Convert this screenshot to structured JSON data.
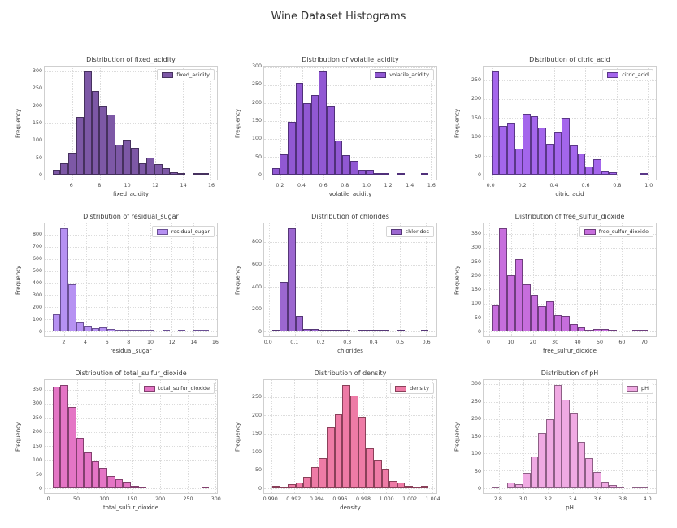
{
  "figure": {
    "title": "Wine Dataset Histograms"
  },
  "chart_data": [
    {
      "type": "bar",
      "title": "Distribution of fixed_acidity",
      "legend": "fixed_acidity",
      "xlabel": "fixed_acidity",
      "ylabel": "Frequency",
      "color": "#7d58a6",
      "edge_color": "#46315e",
      "bin_start": 4.6,
      "bin_end": 15.9,
      "counts": [
        13,
        33,
        63,
        167,
        300,
        243,
        199,
        174,
        86,
        102,
        78,
        33,
        49,
        29,
        18,
        7,
        4,
        0,
        2,
        4
      ],
      "x_ticks": [
        6,
        8,
        10,
        12,
        14,
        16
      ],
      "x_tick_labels": [
        "6",
        "8",
        "10",
        "12",
        "14",
        "16"
      ],
      "y_ticks": [
        0,
        50,
        100,
        150,
        200,
        250,
        300
      ],
      "grid": true,
      "legend_position": "upper right"
    },
    {
      "type": "bar",
      "title": "Distribution of volatile_acidity",
      "legend": "volatile_acidity",
      "xlabel": "volatile_acidity",
      "ylabel": "Frequency",
      "color": "#9158d3",
      "edge_color": "#50307a",
      "bin_start": 0.12,
      "bin_end": 1.58,
      "counts": [
        17,
        57,
        147,
        257,
        200,
        223,
        287,
        189,
        94,
        54,
        38,
        13,
        13,
        4,
        2,
        0,
        2,
        0,
        0,
        1
      ],
      "x_ticks": [
        0.2,
        0.4,
        0.6,
        0.8,
        1.0,
        1.2,
        1.4,
        1.6
      ],
      "x_tick_labels": [
        "0.2",
        "0.4",
        "0.6",
        "0.8",
        "1.0",
        "1.2",
        "1.4",
        "1.6"
      ],
      "y_ticks": [
        0,
        50,
        100,
        150,
        200,
        250,
        300
      ],
      "grid": true,
      "legend_position": "upper right"
    },
    {
      "type": "bar",
      "title": "Distribution of citric_acid",
      "legend": "citric_acid",
      "xlabel": "citric_acid",
      "ylabel": "Frequency",
      "color": "#a466ec",
      "edge_color": "#5a3788",
      "bin_start": 0.0,
      "bin_end": 1.0,
      "counts": [
        273,
        129,
        135,
        69,
        161,
        155,
        125,
        82,
        112,
        150,
        77,
        56,
        22,
        41,
        8,
        5,
        0,
        0,
        0,
        1
      ],
      "x_ticks": [
        0.0,
        0.2,
        0.4,
        0.6,
        0.8,
        1.0
      ],
      "x_tick_labels": [
        "0.0",
        "0.2",
        "0.4",
        "0.6",
        "0.8",
        "1.0"
      ],
      "y_ticks": [
        0,
        50,
        100,
        150,
        200,
        250
      ],
      "grid": true,
      "legend_position": "upper right"
    },
    {
      "type": "bar",
      "title": "Distribution of residual_sugar",
      "legend": "residual_sugar",
      "xlabel": "residual_sugar",
      "ylabel": "Frequency",
      "color": "#b691f2",
      "edge_color": "#6a4f94",
      "bin_start": 0.9,
      "bin_end": 15.5,
      "counts": [
        139,
        855,
        390,
        72,
        45,
        25,
        29,
        19,
        4,
        10,
        6,
        2,
        5,
        0,
        2,
        0,
        2,
        0,
        1,
        3
      ],
      "x_ticks": [
        2,
        4,
        6,
        8,
        10,
        12,
        14,
        16
      ],
      "x_tick_labels": [
        "2",
        "4",
        "6",
        "8",
        "10",
        "12",
        "14",
        "16"
      ],
      "y_ticks": [
        0,
        100,
        200,
        300,
        400,
        500,
        600,
        700,
        800
      ],
      "grid": true,
      "legend_position": "upper right"
    },
    {
      "type": "bar",
      "title": "Distribution of chlorides",
      "legend": "chlorides",
      "xlabel": "chlorides",
      "ylabel": "Frequency",
      "color": "#9c67d0",
      "edge_color": "#553677",
      "bin_start": 0.012,
      "bin_end": 0.611,
      "counts": [
        14,
        444,
        925,
        139,
        23,
        18,
        8,
        10,
        8,
        4,
        0,
        5,
        4,
        2,
        8,
        0,
        1,
        0,
        0,
        2
      ],
      "x_ticks": [
        0.0,
        0.1,
        0.2,
        0.3,
        0.4,
        0.5,
        0.6
      ],
      "x_tick_labels": [
        "0.0",
        "0.1",
        "0.2",
        "0.3",
        "0.4",
        "0.5",
        "0.6"
      ],
      "y_ticks": [
        0,
        200,
        400,
        600,
        800
      ],
      "grid": true,
      "legend_position": "upper right"
    },
    {
      "type": "bar",
      "title": "Distribution of free_sulfur_dioxide",
      "legend": "free_sulfur_dioxide",
      "xlabel": "free_sulfur_dioxide",
      "ylabel": "Frequency",
      "color": "#c76edd",
      "edge_color": "#6f3d7e",
      "bin_start": 1,
      "bin_end": 72,
      "counts": [
        94,
        370,
        200,
        260,
        168,
        131,
        90,
        107,
        58,
        55,
        25,
        15,
        5,
        7,
        9,
        3,
        0,
        0,
        2,
        1
      ],
      "x_ticks": [
        0,
        10,
        20,
        30,
        40,
        50,
        60,
        70
      ],
      "x_tick_labels": [
        "0",
        "10",
        "20",
        "30",
        "40",
        "50",
        "60",
        "70"
      ],
      "y_ticks": [
        0,
        50,
        100,
        150,
        200,
        250,
        300,
        350
      ],
      "grid": true,
      "legend_position": "upper right"
    },
    {
      "type": "bar",
      "title": "Distribution of total_sulfur_dioxide",
      "legend": "total_sulfur_dioxide",
      "xlabel": "total_sulfur_dioxide",
      "ylabel": "Frequency",
      "color": "#e475c5",
      "edge_color": "#833f6e",
      "bin_start": 6,
      "bin_end": 289,
      "counts": [
        362,
        367,
        291,
        180,
        128,
        94,
        72,
        42,
        30,
        23,
        9,
        1,
        0,
        0,
        0,
        0,
        0,
        0,
        0,
        2
      ],
      "x_ticks": [
        0,
        50,
        100,
        150,
        200,
        250,
        300
      ],
      "x_tick_labels": [
        "0",
        "50",
        "100",
        "150",
        "200",
        "250",
        "300"
      ],
      "y_ticks": [
        0,
        50,
        100,
        150,
        200,
        250,
        300,
        350
      ],
      "grid": true,
      "legend_position": "upper right"
    },
    {
      "type": "bar",
      "title": "Distribution of density",
      "legend": "density",
      "xlabel": "density",
      "ylabel": "Frequency",
      "color": "#ee7ba6",
      "edge_color": "#8a4059",
      "bin_start": 0.99007,
      "bin_end": 1.00369,
      "counts": [
        5,
        1,
        11,
        16,
        31,
        58,
        83,
        167,
        204,
        283,
        254,
        196,
        108,
        77,
        54,
        19,
        14,
        5,
        3,
        5
      ],
      "x_ticks": [
        0.99,
        0.992,
        0.994,
        0.996,
        0.998,
        1.0,
        1.002,
        1.004
      ],
      "x_tick_labels": [
        "0.990",
        "0.992",
        "0.994",
        "0.996",
        "0.998",
        "1.000",
        "1.002",
        "1.004"
      ],
      "y_ticks": [
        0,
        50,
        100,
        150,
        200,
        250
      ],
      "grid": true,
      "legend_position": "upper right"
    },
    {
      "type": "bar",
      "title": "Distribution of pH",
      "legend": "pH",
      "xlabel": "pH",
      "ylabel": "Frequency",
      "color": "#f0aae3",
      "edge_color": "#8d5f85",
      "bin_start": 2.74,
      "bin_end": 4.01,
      "counts": [
        1,
        0,
        15,
        12,
        44,
        91,
        160,
        200,
        298,
        256,
        216,
        134,
        86,
        47,
        18,
        9,
        2,
        0,
        1,
        1
      ],
      "x_ticks": [
        2.8,
        3.0,
        3.2,
        3.4,
        3.6,
        3.8,
        4.0
      ],
      "x_tick_labels": [
        "2.8",
        "3.0",
        "3.2",
        "3.4",
        "3.6",
        "3.8",
        "4.0"
      ],
      "y_ticks": [
        0,
        50,
        100,
        150,
        200,
        250,
        300
      ],
      "grid": true,
      "legend_position": "upper right"
    }
  ]
}
